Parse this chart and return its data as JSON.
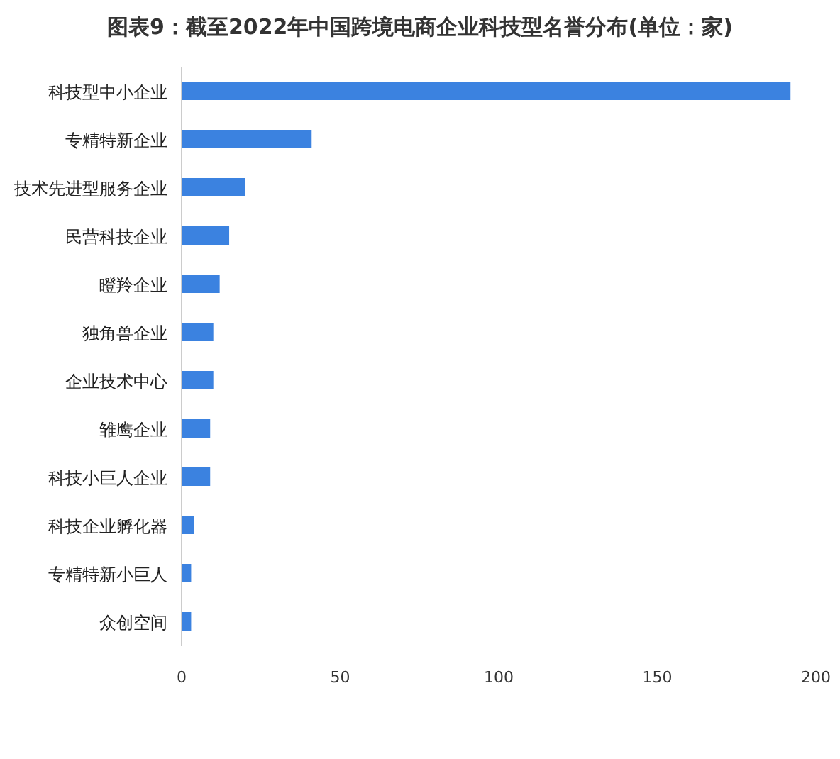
{
  "chart_data": {
    "type": "bar",
    "orientation": "horizontal",
    "title": "图表9：截至2022年中国跨境电商企业科技型名誉分布(单位：家)",
    "categories": [
      "科技型中小企业",
      "专精特新企业",
      "技术先进型服务企业",
      "民营科技企业",
      "瞪羚企业",
      "独角兽企业",
      "企业技术中心",
      "雏鹰企业",
      "科技小巨人企业",
      "科技企业孵化器",
      "专精特新小巨人",
      "众创空间"
    ],
    "values": [
      192,
      41,
      20,
      15,
      12,
      10,
      10,
      9,
      9,
      4,
      3,
      3
    ],
    "color": "#3b82e0",
    "xlim": [
      0,
      200
    ],
    "xticks": [
      0,
      50,
      100,
      150,
      200
    ],
    "grid": false
  }
}
